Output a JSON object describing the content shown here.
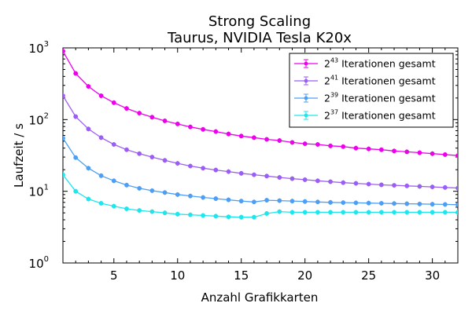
{
  "chart_data": {
    "type": "line",
    "title": [
      "Strong Scaling",
      "Taurus, NVIDIA Tesla K20x"
    ],
    "xlabel": "Anzahl Grafikkarten",
    "ylabel": "Laufzeit / s",
    "xlim": [
      1,
      32
    ],
    "ylim": [
      1,
      1000
    ],
    "yscale": "log",
    "x_ticks": [
      5,
      10,
      15,
      20,
      25,
      30
    ],
    "y_ticks": [
      {
        "value": 1,
        "base": "10",
        "exp": "0"
      },
      {
        "value": 10,
        "base": "10",
        "exp": "1"
      },
      {
        "value": 100,
        "base": "10",
        "exp": "2"
      },
      {
        "value": 1000,
        "base": "10",
        "exp": "3"
      }
    ],
    "legend_position": "top-right",
    "grid": false,
    "x": [
      1,
      2,
      3,
      4,
      5,
      6,
      7,
      8,
      9,
      10,
      11,
      12,
      13,
      14,
      15,
      16,
      17,
      18,
      19,
      20,
      21,
      22,
      23,
      24,
      25,
      26,
      27,
      28,
      29,
      30,
      31,
      32
    ],
    "series": [
      {
        "name_base": "2",
        "name_exp": "43",
        "name_text": "Iterationen gesamt",
        "color": "#ee00ee",
        "values": [
          900,
          440,
          290,
          215,
          172,
          143,
          123,
          108,
          96,
          87,
          79,
          73,
          68,
          63,
          59,
          56,
          53,
          51,
          48,
          46,
          45,
          43,
          42,
          40,
          39,
          38,
          36.5,
          35.5,
          34.5,
          33.5,
          32.5,
          31.5
        ]
      },
      {
        "name_base": "2",
        "name_exp": "41",
        "name_text": "Iterationen gesamt",
        "color": "#9b5ef5",
        "values": [
          215,
          110,
          74,
          56,
          45,
          38,
          33.5,
          30,
          27,
          24.5,
          22.5,
          21,
          19.8,
          18.8,
          17.8,
          17,
          16.3,
          15.6,
          15,
          14.5,
          14,
          13.6,
          13.2,
          12.9,
          12.6,
          12.3,
          12.1,
          11.9,
          11.7,
          11.5,
          11.3,
          11.1
        ]
      },
      {
        "name_base": "2",
        "name_exp": "39",
        "name_text": "Iterationen gesamt",
        "color": "#4d9ff5",
        "values": [
          55,
          29.5,
          21,
          16.5,
          14,
          12.2,
          11,
          10.2,
          9.6,
          9,
          8.6,
          8.2,
          7.9,
          7.6,
          7.3,
          7.1,
          7.5,
          7.4,
          7.3,
          7.2,
          7.1,
          7,
          6.95,
          6.9,
          6.85,
          6.8,
          6.75,
          6.7,
          6.65,
          6.6,
          6.55,
          6.5
        ]
      },
      {
        "name_base": "2",
        "name_exp": "37",
        "name_text": "Iterationen gesamt",
        "color": "#1ee6ee",
        "values": [
          17,
          10,
          7.8,
          6.8,
          6.2,
          5.7,
          5.4,
          5.2,
          5,
          4.8,
          4.7,
          4.6,
          4.5,
          4.4,
          4.35,
          4.35,
          4.9,
          5.2,
          5.1,
          5.1,
          5.1,
          5.1,
          5.1,
          5.1,
          5.1,
          5.1,
          5.1,
          5.1,
          5.1,
          5.1,
          5.1,
          5.1
        ]
      }
    ]
  }
}
